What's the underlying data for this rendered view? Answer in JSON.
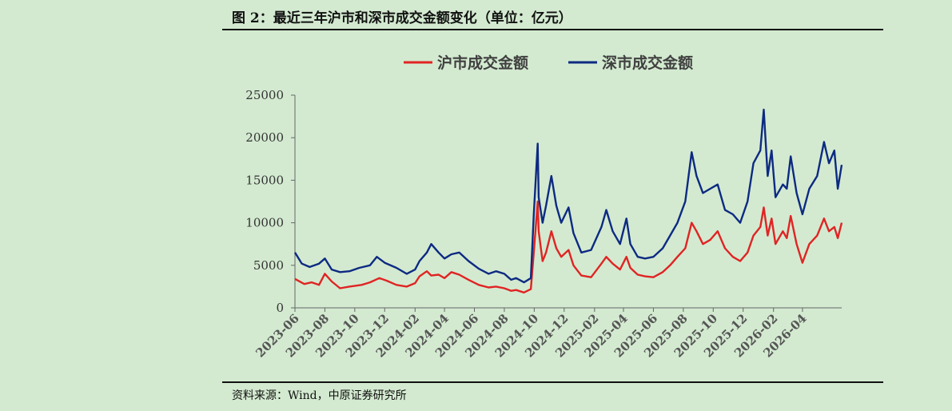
{
  "figure": {
    "title": "图 2：最近三年沪市和深市成交金额变化（单位：亿元）",
    "source": "资料来源：Wind，中原证券研究所"
  },
  "chart_data": {
    "type": "line",
    "ylim": [
      0,
      25000
    ],
    "yticks": [
      0,
      5000,
      10000,
      15000,
      20000,
      25000
    ],
    "xlim": [
      "2023-06-01",
      "2026-06-20"
    ],
    "xticks": [
      "2023-06",
      "2023-08",
      "2023-10",
      "2023-12",
      "2024-02",
      "2024-04",
      "2024-06",
      "2024-08",
      "2024-10",
      "2024-12",
      "2025-02",
      "2025-04",
      "2025-06",
      "2025-08",
      "2025-10",
      "2025-12",
      "2026-02",
      "2026-04"
    ],
    "legend_position": "top-center",
    "grid": false,
    "series": [
      {
        "name": "沪市成交金额",
        "color": "#e02424",
        "points": [
          [
            "2023-06-01",
            3400
          ],
          [
            "2023-06-20",
            2800
          ],
          [
            "2023-07-05",
            3000
          ],
          [
            "2023-07-20",
            2700
          ],
          [
            "2023-08-01",
            4000
          ],
          [
            "2023-08-15",
            3100
          ],
          [
            "2023-09-01",
            2300
          ],
          [
            "2023-09-20",
            2500
          ],
          [
            "2023-10-15",
            2700
          ],
          [
            "2023-11-01",
            3000
          ],
          [
            "2023-11-20",
            3500
          ],
          [
            "2023-12-05",
            3200
          ],
          [
            "2023-12-25",
            2700
          ],
          [
            "2024-01-15",
            2500
          ],
          [
            "2024-02-01",
            2900
          ],
          [
            "2024-02-10",
            3700
          ],
          [
            "2024-02-25",
            4300
          ],
          [
            "2024-03-05",
            3800
          ],
          [
            "2024-03-20",
            3900
          ],
          [
            "2024-04-01",
            3500
          ],
          [
            "2024-04-15",
            4200
          ],
          [
            "2024-05-01",
            3900
          ],
          [
            "2024-05-20",
            3300
          ],
          [
            "2024-06-10",
            2700
          ],
          [
            "2024-06-30",
            2400
          ],
          [
            "2024-07-15",
            2500
          ],
          [
            "2024-08-01",
            2300
          ],
          [
            "2024-08-15",
            2000
          ],
          [
            "2024-08-25",
            2100
          ],
          [
            "2024-09-10",
            1800
          ],
          [
            "2024-09-24",
            2200
          ],
          [
            "2024-09-30",
            6500
          ],
          [
            "2024-10-08",
            12500
          ],
          [
            "2024-10-10",
            9000
          ],
          [
            "2024-10-18",
            5500
          ],
          [
            "2024-10-25",
            6500
          ],
          [
            "2024-11-05",
            9000
          ],
          [
            "2024-11-15",
            7000
          ],
          [
            "2024-11-25",
            6000
          ],
          [
            "2024-12-10",
            6800
          ],
          [
            "2024-12-20",
            5000
          ],
          [
            "2025-01-05",
            3800
          ],
          [
            "2025-01-25",
            3600
          ],
          [
            "2025-02-15",
            5200
          ],
          [
            "2025-02-25",
            6000
          ],
          [
            "2025-03-10",
            5200
          ],
          [
            "2025-03-25",
            4500
          ],
          [
            "2025-04-07",
            6000
          ],
          [
            "2025-04-15",
            4700
          ],
          [
            "2025-04-30",
            3900
          ],
          [
            "2025-05-15",
            3700
          ],
          [
            "2025-06-01",
            3600
          ],
          [
            "2025-06-20",
            4200
          ],
          [
            "2025-07-05",
            5000
          ],
          [
            "2025-07-20",
            6000
          ],
          [
            "2025-08-05",
            7000
          ],
          [
            "2025-08-18",
            10000
          ],
          [
            "2025-08-28",
            9000
          ],
          [
            "2025-09-10",
            7500
          ],
          [
            "2025-09-25",
            8000
          ],
          [
            "2025-10-10",
            9000
          ],
          [
            "2025-10-25",
            7000
          ],
          [
            "2025-11-10",
            6000
          ],
          [
            "2025-11-25",
            5500
          ],
          [
            "2025-12-10",
            6500
          ],
          [
            "2025-12-22",
            8500
          ],
          [
            "2026-01-05",
            9500
          ],
          [
            "2026-01-12",
            11800
          ],
          [
            "2026-01-20",
            8500
          ],
          [
            "2026-01-28",
            10500
          ],
          [
            "2026-02-05",
            7500
          ],
          [
            "2026-02-20",
            9000
          ],
          [
            "2026-02-28",
            8200
          ],
          [
            "2026-03-08",
            10800
          ],
          [
            "2026-03-20",
            7500
          ],
          [
            "2026-04-01",
            5300
          ],
          [
            "2026-04-15",
            7500
          ],
          [
            "2026-05-01",
            8500
          ],
          [
            "2026-05-15",
            10500
          ],
          [
            "2026-05-25",
            9000
          ],
          [
            "2026-06-05",
            9500
          ],
          [
            "2026-06-12",
            8200
          ],
          [
            "2026-06-20",
            10000
          ]
        ]
      },
      {
        "name": "深市成交金额",
        "color": "#0d2a82",
        "points": [
          [
            "2023-06-01",
            6500
          ],
          [
            "2023-06-15",
            5200
          ],
          [
            "2023-07-01",
            4800
          ],
          [
            "2023-07-20",
            5200
          ],
          [
            "2023-08-01",
            5800
          ],
          [
            "2023-08-15",
            4500
          ],
          [
            "2023-09-01",
            4200
          ],
          [
            "2023-09-20",
            4300
          ],
          [
            "2023-10-10",
            4700
          ],
          [
            "2023-11-01",
            5000
          ],
          [
            "2023-11-15",
            6000
          ],
          [
            "2023-12-01",
            5300
          ],
          [
            "2023-12-25",
            4700
          ],
          [
            "2024-01-15",
            4000
          ],
          [
            "2024-02-01",
            4500
          ],
          [
            "2024-02-10",
            5500
          ],
          [
            "2024-02-25",
            6500
          ],
          [
            "2024-03-05",
            7500
          ],
          [
            "2024-03-20",
            6500
          ],
          [
            "2024-04-01",
            5800
          ],
          [
            "2024-04-15",
            6300
          ],
          [
            "2024-05-01",
            6500
          ],
          [
            "2024-05-20",
            5500
          ],
          [
            "2024-06-10",
            4600
          ],
          [
            "2024-06-30",
            4000
          ],
          [
            "2024-07-15",
            4300
          ],
          [
            "2024-08-01",
            4000
          ],
          [
            "2024-08-15",
            3300
          ],
          [
            "2024-08-25",
            3500
          ],
          [
            "2024-09-10",
            3000
          ],
          [
            "2024-09-24",
            3500
          ],
          [
            "2024-09-30",
            11000
          ],
          [
            "2024-10-08",
            19300
          ],
          [
            "2024-10-10",
            13000
          ],
          [
            "2024-10-18",
            10000
          ],
          [
            "2024-10-25",
            12000
          ],
          [
            "2024-11-05",
            15500
          ],
          [
            "2024-11-15",
            12000
          ],
          [
            "2024-11-25",
            10000
          ],
          [
            "2024-12-10",
            11800
          ],
          [
            "2024-12-20",
            8800
          ],
          [
            "2025-01-05",
            6500
          ],
          [
            "2025-01-25",
            6800
          ],
          [
            "2025-02-15",
            9500
          ],
          [
            "2025-02-25",
            11500
          ],
          [
            "2025-03-10",
            9000
          ],
          [
            "2025-03-25",
            7500
          ],
          [
            "2025-04-07",
            10500
          ],
          [
            "2025-04-15",
            7500
          ],
          [
            "2025-04-30",
            6000
          ],
          [
            "2025-05-15",
            5800
          ],
          [
            "2025-06-01",
            6000
          ],
          [
            "2025-06-20",
            7000
          ],
          [
            "2025-07-05",
            8500
          ],
          [
            "2025-07-20",
            10000
          ],
          [
            "2025-08-05",
            12500
          ],
          [
            "2025-08-18",
            18300
          ],
          [
            "2025-08-28",
            15500
          ],
          [
            "2025-09-10",
            13500
          ],
          [
            "2025-09-25",
            14000
          ],
          [
            "2025-10-10",
            14500
          ],
          [
            "2025-10-25",
            11500
          ],
          [
            "2025-11-10",
            11000
          ],
          [
            "2025-11-25",
            10000
          ],
          [
            "2025-12-10",
            12500
          ],
          [
            "2025-12-22",
            17000
          ],
          [
            "2026-01-05",
            18500
          ],
          [
            "2026-01-12",
            23300
          ],
          [
            "2026-01-20",
            15500
          ],
          [
            "2026-01-28",
            18500
          ],
          [
            "2026-02-05",
            13000
          ],
          [
            "2026-02-20",
            14500
          ],
          [
            "2026-02-28",
            14000
          ],
          [
            "2026-03-08",
            17800
          ],
          [
            "2026-03-20",
            13500
          ],
          [
            "2026-04-01",
            11000
          ],
          [
            "2026-04-15",
            14000
          ],
          [
            "2026-05-01",
            15500
          ],
          [
            "2026-05-15",
            19500
          ],
          [
            "2026-05-25",
            17000
          ],
          [
            "2026-06-05",
            18500
          ],
          [
            "2026-06-12",
            14000
          ],
          [
            "2026-06-20",
            16800
          ]
        ]
      }
    ]
  }
}
